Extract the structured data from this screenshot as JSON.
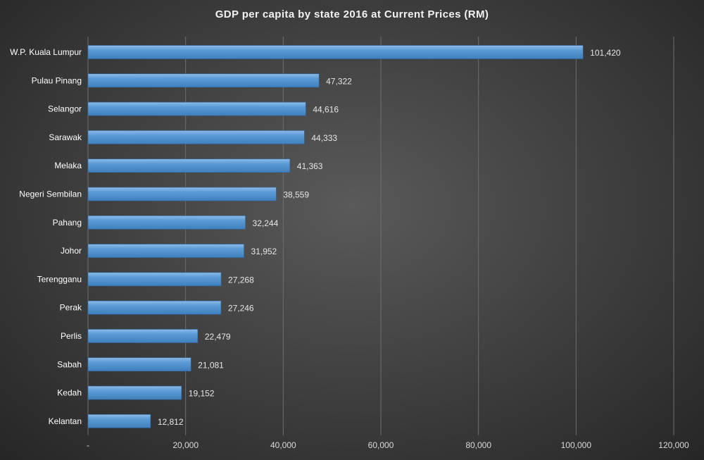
{
  "chart_data": {
    "type": "bar",
    "orientation": "horizontal",
    "title": "GDP per capita  by state 2016 at Current Prices (RM)",
    "categories": [
      "W.P. Kuala Lumpur",
      "Pulau Pinang",
      "Selangor",
      "Sarawak",
      "Melaka",
      "Negeri Sembilan",
      "Pahang",
      "Johor",
      "Terengganu",
      "Perak",
      "Perlis",
      "Sabah",
      "Kedah",
      "Kelantan"
    ],
    "values": [
      101420,
      47322,
      44616,
      44333,
      41363,
      38559,
      32244,
      31952,
      27268,
      27246,
      22479,
      21081,
      19152,
      12812
    ],
    "value_labels": [
      "101,420",
      "47,322",
      "44,616",
      "44,333",
      "41,363",
      "38,559",
      "32,244",
      "31,952",
      "27,268",
      "27,246",
      "22,479",
      "21,081",
      "19,152",
      "12,812"
    ],
    "xlim": [
      0,
      120000
    ],
    "x_ticks": [
      0,
      20000,
      40000,
      60000,
      80000,
      100000,
      120000
    ],
    "x_tick_labels": [
      "-",
      "20,000",
      "40,000",
      "60,000",
      "80,000",
      "100,000",
      "120,000"
    ],
    "xlabel": "",
    "ylabel": "",
    "grid": "vertical",
    "legend": "none",
    "colors": {
      "bar": "#5b9bd5",
      "bar_highlight": "#8dbbe8",
      "grid": "#6e6e6e",
      "text": "#ffffff"
    }
  }
}
